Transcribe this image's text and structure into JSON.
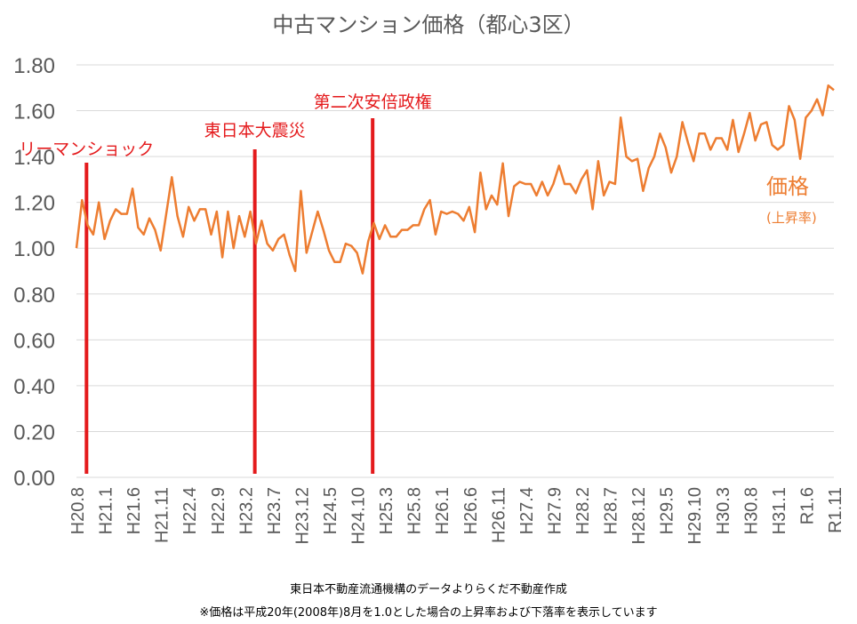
{
  "colors": {
    "line": "#ED7D31",
    "event": "#E41A1C",
    "grid": "#D9D9D9",
    "axis_text": "#595959"
  },
  "chart_data": {
    "type": "line",
    "title": "中古マンション価格（都心3区）",
    "ylim": [
      0,
      1.8
    ],
    "yticks": [
      "0.00",
      "0.20",
      "0.40",
      "0.60",
      "0.80",
      "1.00",
      "1.20",
      "1.40",
      "1.60",
      "1.80"
    ],
    "xticks": [
      "H20.8",
      "H21.1",
      "H21.6",
      "H21.11",
      "H22.4",
      "H22.9",
      "H23.2",
      "H23.7",
      "H23.12",
      "H24.5",
      "H24.10",
      "H25.3",
      "H25.8",
      "H26.1",
      "H26.6",
      "H26.11",
      "H27.4",
      "H27.9",
      "H28.2",
      "H28.7",
      "H28.12",
      "H29.5",
      "H29.10",
      "H30.3",
      "H30.8",
      "H31.1",
      "R1.6",
      "R1.11"
    ],
    "grid": true,
    "series": [
      {
        "name": "価格",
        "subtitle": "(上昇率)",
        "values": [
          1.0,
          1.21,
          1.1,
          1.06,
          1.2,
          1.04,
          1.12,
          1.17,
          1.15,
          1.15,
          1.26,
          1.09,
          1.06,
          1.13,
          1.08,
          0.99,
          1.15,
          1.31,
          1.14,
          1.05,
          1.18,
          1.12,
          1.17,
          1.17,
          1.06,
          1.16,
          0.96,
          1.16,
          1.0,
          1.14,
          1.05,
          1.16,
          1.02,
          1.12,
          1.02,
          0.99,
          1.04,
          1.06,
          0.97,
          0.9,
          1.25,
          0.98,
          1.07,
          1.16,
          1.08,
          0.99,
          0.94,
          0.94,
          1.02,
          1.01,
          0.98,
          0.89,
          1.03,
          1.11,
          1.04,
          1.1,
          1.05,
          1.05,
          1.08,
          1.08,
          1.1,
          1.1,
          1.17,
          1.21,
          1.06,
          1.16,
          1.15,
          1.16,
          1.15,
          1.12,
          1.18,
          1.07,
          1.33,
          1.17,
          1.23,
          1.19,
          1.37,
          1.14,
          1.27,
          1.29,
          1.28,
          1.28,
          1.23,
          1.29,
          1.23,
          1.28,
          1.36,
          1.28,
          1.28,
          1.24,
          1.3,
          1.34,
          1.17,
          1.38,
          1.23,
          1.29,
          1.28,
          1.57,
          1.4,
          1.38,
          1.39,
          1.25,
          1.35,
          1.4,
          1.5,
          1.44,
          1.33,
          1.4,
          1.55,
          1.46,
          1.38,
          1.5,
          1.5,
          1.43,
          1.48,
          1.48,
          1.43,
          1.56,
          1.42,
          1.5,
          1.59,
          1.47,
          1.54,
          1.55,
          1.45,
          1.43,
          1.45,
          1.62,
          1.56,
          1.39,
          1.57,
          1.6,
          1.65,
          1.58,
          1.71,
          1.69
        ]
      }
    ],
    "events": [
      {
        "label": "リーマンショック",
        "index": 1
      },
      {
        "label": "東日本大震災",
        "index": 31
      },
      {
        "label": "第二次安倍政権",
        "index": 52
      }
    ]
  },
  "footer": {
    "source": "東日本不動産流通機構のデータよりらくだ不動産作成",
    "note": "※価格は平成20年(2008年)8月を1.0とした場合の上昇率および下落率を表示しています"
  }
}
